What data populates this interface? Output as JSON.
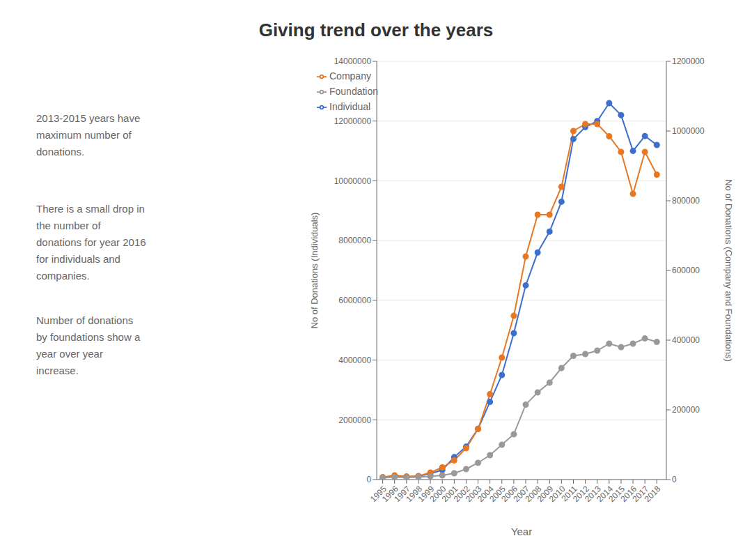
{
  "chart_data": {
    "type": "line",
    "title": "Giving trend over the years",
    "x": [
      1995,
      1996,
      1997,
      1998,
      1999,
      2000,
      2001,
      2002,
      2003,
      2004,
      2005,
      2006,
      2007,
      2008,
      2009,
      2010,
      2011,
      2012,
      2013,
      2014,
      2015,
      2016,
      2017,
      2018
    ],
    "series": [
      {
        "name": "Individual",
        "color": "#3d6fcc",
        "axis": "y",
        "values": [
          50000,
          120000,
          90000,
          110000,
          200000,
          320000,
          750000,
          1100000,
          1700000,
          2600000,
          3500000,
          4900000,
          6500000,
          7600000,
          8300000,
          9300000,
          11400000,
          11800000,
          12000000,
          12600000,
          12200000,
          11000000,
          11500000,
          11200000
        ]
      },
      {
        "name": "Company",
        "color": "#e87722",
        "axis": "y2",
        "values": [
          7000,
          12000,
          9000,
          10000,
          20000,
          35000,
          55000,
          90000,
          145000,
          245000,
          350000,
          470000,
          640000,
          760000,
          760000,
          840000,
          1000000,
          1020000,
          1020000,
          985000,
          940000,
          820000,
          940000,
          875000
        ]
      },
      {
        "name": "Foundation",
        "color": "#999999",
        "axis": "y2",
        "values": [
          5000,
          7000,
          6000,
          7000,
          9000,
          12000,
          18000,
          30000,
          48000,
          70000,
          100000,
          130000,
          215000,
          250000,
          278000,
          320000,
          355000,
          360000,
          370000,
          390000,
          380000,
          390000,
          405000,
          395000
        ]
      }
    ],
    "xlabel": "Year",
    "ylabel": "No of Donations (Individuals)",
    "y2label": "No of Donations (Company and Foundations)",
    "xlim": [
      1994.5,
      2018.8
    ],
    "xticks": [
      1995,
      1996,
      1997,
      1998,
      1999,
      2000,
      2001,
      2002,
      2003,
      2004,
      2005,
      2006,
      2007,
      2008,
      2009,
      2010,
      2011,
      2012,
      2013,
      2014,
      2015,
      2016,
      2017,
      2018
    ],
    "ylim": [
      0,
      14000000
    ],
    "yticks": [
      0,
      2000000,
      4000000,
      6000000,
      8000000,
      10000000,
      12000000,
      14000000
    ],
    "y2lim": [
      0,
      1200000
    ],
    "y2ticks": [
      0,
      200000,
      400000,
      600000,
      800000,
      1000000,
      1200000
    ],
    "grid": true,
    "legend": "upper left",
    "marker": "circle",
    "annotations": [
      "2013-2015 years have\nmaximum number of\ndonations.",
      "There is a small drop in\nthe number of\ndonations for year 2016\nfor individuals and\ncompanies.",
      "Number of donations\nby foundations show a\nyear over year\nincrease."
    ]
  }
}
